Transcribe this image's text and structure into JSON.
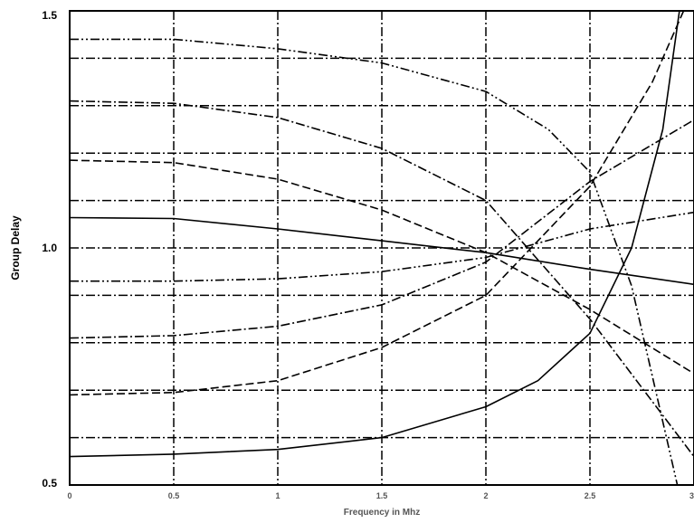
{
  "chart_data": {
    "type": "line",
    "title": "",
    "xlabel": "Frequency in Mhz",
    "ylabel": "Group Delay",
    "xlim": [
      0,
      3
    ],
    "ylim": [
      0.5,
      1.5
    ],
    "x_ticks": [
      "0",
      "0.5",
      "1",
      "1.5",
      "2",
      "2.5",
      "3"
    ],
    "y_ticks": [
      "0.5",
      "1.0",
      "1.5"
    ],
    "grid": true,
    "grid_style": "dash-dot",
    "legend": "none",
    "colors": {
      "line": "#000000",
      "grid": "#000000",
      "background": "#ffffff"
    },
    "series": [
      {
        "style": "solid",
        "x": [
          0,
          0.5,
          1,
          1.5,
          2,
          2.5,
          3
        ],
        "y": [
          1.064,
          1.062,
          1.04,
          1.015,
          0.99,
          0.955,
          0.923
        ]
      },
      {
        "style": "solid",
        "x": [
          0,
          0.5,
          1,
          1.5,
          2,
          2.25,
          2.5,
          2.7,
          2.85,
          2.93
        ],
        "y": [
          0.56,
          0.565,
          0.575,
          0.6,
          0.665,
          0.72,
          0.82,
          1.0,
          1.25,
          1.5
        ]
      },
      {
        "style": "dashed",
        "x": [
          0,
          0.5,
          1,
          1.5,
          2,
          2.5,
          3
        ],
        "y": [
          1.185,
          1.18,
          1.145,
          1.08,
          0.99,
          0.87,
          0.735
        ]
      },
      {
        "style": "dashed",
        "x": [
          0,
          0.5,
          1,
          1.5,
          2,
          2.5,
          2.8,
          2.95
        ],
        "y": [
          0.69,
          0.695,
          0.72,
          0.79,
          0.9,
          1.13,
          1.35,
          1.5
        ]
      },
      {
        "style": "dash-dot",
        "x": [
          0,
          0.5,
          1,
          1.5,
          2,
          2.5,
          3
        ],
        "y": [
          1.31,
          1.305,
          1.275,
          1.21,
          1.1,
          0.85,
          0.56
        ]
      },
      {
        "style": "dash-dot",
        "x": [
          0,
          0.5,
          1,
          1.5,
          2,
          2.5,
          3
        ],
        "y": [
          0.81,
          0.815,
          0.835,
          0.88,
          0.97,
          1.14,
          1.27
        ]
      },
      {
        "style": "dash-dot-dot",
        "x": [
          0,
          0.5,
          1,
          1.5,
          2,
          2.3,
          2.5,
          2.7,
          2.92
        ],
        "y": [
          1.44,
          1.44,
          1.42,
          1.39,
          1.33,
          1.25,
          1.16,
          0.92,
          0.5
        ]
      },
      {
        "style": "dash-dot-dot",
        "x": [
          0,
          0.5,
          1,
          1.5,
          2,
          2.5,
          3
        ],
        "y": [
          0.93,
          0.93,
          0.935,
          0.95,
          0.98,
          1.04,
          1.075
        ]
      }
    ]
  }
}
